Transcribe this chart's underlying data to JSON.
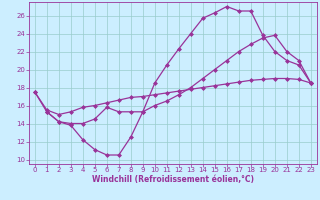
{
  "bg_color": "#cceeff",
  "grid_color": "#99cccc",
  "line_color": "#993399",
  "marker": "D",
  "markersize": 2.0,
  "linewidth": 0.9,
  "xlabel": "Windchill (Refroidissement éolien,°C)",
  "xlabel_fontsize": 5.5,
  "tick_fontsize": 5.0,
  "ylim": [
    9.5,
    27.5
  ],
  "xlim": [
    -0.5,
    23.5
  ],
  "yticks": [
    10,
    12,
    14,
    16,
    18,
    20,
    22,
    24,
    26
  ],
  "xticks": [
    0,
    1,
    2,
    3,
    4,
    5,
    6,
    7,
    8,
    9,
    10,
    11,
    12,
    13,
    14,
    15,
    16,
    17,
    18,
    19,
    20,
    21,
    22,
    23
  ],
  "line1_x": [
    0,
    1,
    2,
    3,
    4,
    5,
    6,
    7,
    8,
    9,
    10,
    11,
    12,
    13,
    14,
    15,
    16,
    17,
    18,
    19,
    20,
    21,
    22,
    23
  ],
  "line1_y": [
    17.5,
    15.3,
    14.2,
    13.8,
    12.2,
    11.1,
    10.5,
    10.5,
    12.5,
    15.3,
    18.5,
    20.5,
    22.3,
    24.0,
    25.7,
    26.3,
    27.0,
    26.5,
    26.5,
    23.8,
    22.0,
    21.0,
    20.5,
    18.5
  ],
  "line2_x": [
    1,
    2,
    3,
    4,
    5,
    6,
    7,
    8,
    9,
    10,
    11,
    12,
    13,
    14,
    15,
    16,
    17,
    18,
    19,
    20,
    21,
    22,
    23
  ],
  "line2_y": [
    15.3,
    14.2,
    14.0,
    14.0,
    14.5,
    15.8,
    15.3,
    15.3,
    15.3,
    16.0,
    16.5,
    17.2,
    18.0,
    19.0,
    20.0,
    21.0,
    22.0,
    22.8,
    23.5,
    23.8,
    22.0,
    21.0,
    18.5
  ],
  "line3_x": [
    0,
    1,
    2,
    3,
    4,
    5,
    6,
    7,
    8,
    9,
    10,
    11,
    12,
    13,
    14,
    15,
    16,
    17,
    18,
    19,
    20,
    21,
    22,
    23
  ],
  "line3_y": [
    17.5,
    15.5,
    15.0,
    15.3,
    15.8,
    16.0,
    16.3,
    16.6,
    16.9,
    17.0,
    17.2,
    17.4,
    17.6,
    17.8,
    18.0,
    18.2,
    18.4,
    18.6,
    18.8,
    18.9,
    19.0,
    19.0,
    18.9,
    18.5
  ]
}
